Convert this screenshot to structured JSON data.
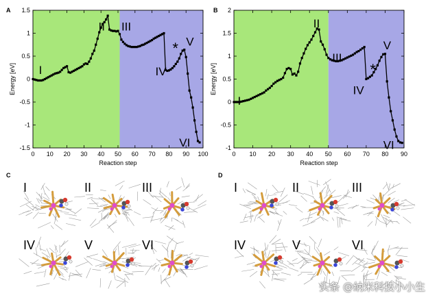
{
  "colors": {
    "region_a": "#a8e77a",
    "region_b": "#a7a7e6",
    "line": "#000000",
    "atom_gold": "#d49c3c",
    "atom_pink": "#e04ccc",
    "atom_red": "#d63a2e",
    "atom_blue": "#3a46d9",
    "wire": "#9a9a9a"
  },
  "chart_data": [
    {
      "panel": "A",
      "type": "line",
      "xlabel": "Reaction step",
      "ylabel": "Energy [eV]",
      "xlim": [
        0,
        100
      ],
      "ylim": [
        -1.5,
        1.5
      ],
      "xticks": [
        0,
        10,
        20,
        30,
        40,
        50,
        60,
        70,
        80,
        90,
        100
      ],
      "yticks": [
        -1.5,
        -1,
        -0.5,
        0,
        0.5,
        1,
        1.5
      ],
      "ytick_labels": [
        "-1.5",
        "-1",
        "-0.5",
        "0",
        "0.5",
        "1",
        "1.5"
      ],
      "regions": [
        {
          "from": 0,
          "to": 51,
          "color": "#a8e77a"
        },
        {
          "from": 51,
          "to": 100,
          "color": "#a7a7e6"
        }
      ],
      "x": [
        0,
        1,
        2,
        3,
        4,
        5,
        6,
        7,
        8,
        9,
        10,
        11,
        12,
        13,
        14,
        15,
        16,
        17,
        18,
        19,
        20,
        21,
        22,
        23,
        24,
        25,
        26,
        27,
        28,
        29,
        30,
        31,
        32,
        33,
        34,
        35,
        36,
        37,
        38,
        39,
        40,
        41,
        42,
        43,
        44,
        45,
        46,
        47,
        48,
        49,
        50,
        51,
        52,
        53,
        54,
        55,
        56,
        57,
        58,
        59,
        60,
        61,
        62,
        63,
        64,
        65,
        66,
        67,
        68,
        69,
        70,
        71,
        72,
        73,
        74,
        75,
        76,
        77,
        78,
        79,
        80,
        81,
        82,
        83,
        84,
        85,
        86,
        87,
        88,
        89,
        90,
        91,
        92,
        93,
        94,
        95,
        96,
        97,
        98
      ],
      "y": [
        0.0,
        -0.01,
        -0.02,
        -0.03,
        -0.03,
        -0.03,
        -0.02,
        0.0,
        0.02,
        0.04,
        0.06,
        0.08,
        0.1,
        0.12,
        0.13,
        0.14,
        0.16,
        0.2,
        0.24,
        0.26,
        0.28,
        0.15,
        0.14,
        0.16,
        0.18,
        0.2,
        0.22,
        0.24,
        0.26,
        0.28,
        0.32,
        0.34,
        0.33,
        0.38,
        0.45,
        0.55,
        0.62,
        0.75,
        0.88,
        1.02,
        1.12,
        1.2,
        1.24,
        1.3,
        1.38,
        1.08,
        1.06,
        1.05,
        1.05,
        1.04,
        1.05,
        0.98,
        0.86,
        0.81,
        0.77,
        0.74,
        0.72,
        0.71,
        0.7,
        0.7,
        0.7,
        0.7,
        0.71,
        0.72,
        0.74,
        0.75,
        0.77,
        0.79,
        0.81,
        0.83,
        0.85,
        0.88,
        0.9,
        0.92,
        0.94,
        0.96,
        0.98,
        1.0,
        0.2,
        0.18,
        0.19,
        0.21,
        0.24,
        0.28,
        0.33,
        0.38,
        0.45,
        0.55,
        0.62,
        0.64,
        0.48,
        0.12,
        -0.25,
        -0.4,
        -0.62,
        -0.9,
        -1.15,
        -1.35,
        -1.38
      ],
      "annotations": [
        {
          "text": "I",
          "x": 3.5,
          "y": 0.2
        },
        {
          "text": "II",
          "x": 38.5,
          "y": 1.15
        },
        {
          "text": "III",
          "x": 52,
          "y": 1.15
        },
        {
          "text": "IV",
          "x": 72,
          "y": 0.17
        },
        {
          "text": "*",
          "x": 82,
          "y": 0.68
        },
        {
          "text": "V",
          "x": 90,
          "y": 0.82
        },
        {
          "text": "VI",
          "x": 86,
          "y": -1.38
        }
      ]
    },
    {
      "panel": "B",
      "type": "line",
      "xlabel": "Reaction step",
      "ylabel": "Energy [eV]",
      "xlim": [
        0,
        90
      ],
      "ylim": [
        -1,
        2
      ],
      "xticks": [
        0,
        10,
        20,
        30,
        40,
        50,
        60,
        70,
        80,
        90
      ],
      "yticks": [
        -1,
        -0.5,
        0,
        0.5,
        1,
        1.5,
        2
      ],
      "ytick_labels": [
        "-1",
        "-0.5",
        "0",
        "0.5",
        "1",
        "1.5",
        "2"
      ],
      "regions": [
        {
          "from": 0,
          "to": 50,
          "color": "#a8e77a"
        },
        {
          "from": 50,
          "to": 90,
          "color": "#a7a7e6"
        }
      ],
      "x": [
        0,
        1,
        2,
        3,
        4,
        5,
        6,
        7,
        8,
        9,
        10,
        11,
        12,
        13,
        14,
        15,
        16,
        17,
        18,
        19,
        20,
        21,
        22,
        23,
        24,
        25,
        26,
        27,
        28,
        29,
        30,
        31,
        32,
        33,
        34,
        35,
        36,
        37,
        38,
        39,
        40,
        41,
        42,
        43,
        44,
        45,
        46,
        47,
        48,
        49,
        50,
        51,
        52,
        53,
        54,
        55,
        56,
        57,
        58,
        59,
        60,
        61,
        62,
        63,
        64,
        65,
        66,
        67,
        68,
        69,
        70,
        71,
        72,
        73,
        74,
        75,
        76,
        77,
        78,
        79,
        80,
        81,
        82,
        83,
        84,
        85,
        86,
        87,
        88,
        89
      ],
      "y": [
        0.0,
        0.0,
        0.0,
        0.0,
        0.01,
        0.02,
        0.03,
        0.04,
        0.05,
        0.07,
        0.09,
        0.11,
        0.13,
        0.15,
        0.17,
        0.19,
        0.21,
        0.25,
        0.28,
        0.31,
        0.35,
        0.4,
        0.43,
        0.46,
        0.48,
        0.5,
        0.53,
        0.63,
        0.72,
        0.74,
        0.72,
        0.6,
        0.62,
        0.58,
        0.66,
        0.84,
        0.96,
        1.06,
        1.16,
        1.24,
        1.3,
        1.36,
        1.44,
        1.52,
        1.6,
        1.58,
        1.32,
        1.25,
        1.15,
        1.03,
        0.96,
        0.93,
        0.91,
        0.9,
        0.89,
        0.89,
        0.9,
        0.91,
        0.93,
        0.95,
        0.97,
        0.99,
        1.01,
        1.03,
        1.06,
        1.09,
        1.11,
        1.14,
        1.17,
        1.2,
        0.5,
        0.52,
        0.55,
        0.58,
        0.65,
        0.72,
        0.8,
        0.9,
        0.98,
        1.04,
        1.05,
        0.45,
        0.1,
        -0.2,
        -0.4,
        -0.6,
        -0.75,
        -0.85,
        -0.88,
        -0.89
      ],
      "annotations": [
        {
          "text": "I",
          "x": 2,
          "y": 0.03
        },
        {
          "text": "II",
          "x": 42,
          "y": 1.72
        },
        {
          "text": "III",
          "x": 52,
          "y": 0.97
        },
        {
          "text": "IV",
          "x": 63,
          "y": 0.26
        },
        {
          "text": "*",
          "x": 72,
          "y": 0.72
        },
        {
          "text": "V",
          "x": 79,
          "y": 1.24
        },
        {
          "text": "VI",
          "x": 79,
          "y": -0.93
        }
      ]
    }
  ],
  "molecules": {
    "C": {
      "letter": "C",
      "labels": [
        "I",
        "II",
        "III",
        "IV",
        "V",
        "VI"
      ]
    },
    "D": {
      "letter": "D",
      "labels": [
        "I",
        "II",
        "III",
        "IV",
        "V",
        "VI"
      ]
    }
  },
  "watermark": "头条 @纳米科技小小生"
}
